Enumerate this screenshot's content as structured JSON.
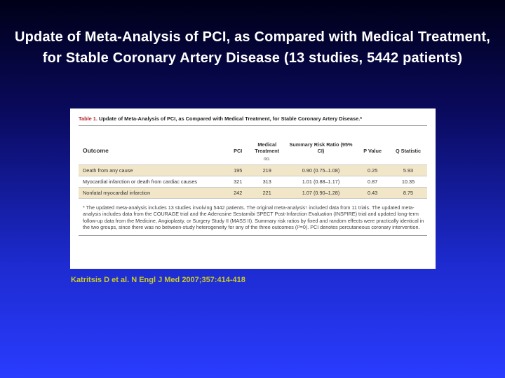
{
  "slide": {
    "title": "Update of Meta-Analysis of PCI, as Compared with Medical Treatment, for Stable Coronary Artery Disease (13 studies, 5442 patients)",
    "citation": "Katritsis D et al. N Engl J Med 2007;357:414-418"
  },
  "table": {
    "label": "Table 1.",
    "caption": "Update of Meta-Analysis of PCI, as Compared with Medical Treatment, for Stable Coronary Artery Disease.*",
    "headers": {
      "outcome": "Outcome",
      "pci": "PCI",
      "medical": "Medical Treatment",
      "ratio": "Summary Risk Ratio (95% CI)",
      "pvalue": "P Value",
      "qstat": "Q Statistic"
    },
    "unit": "no.",
    "rows": [
      {
        "outcome": "Death from any cause",
        "pci": "195",
        "medical": "219",
        "ratio": "0.90 (0.75–1.08)",
        "pvalue": "0.25",
        "qstat": "5.93"
      },
      {
        "outcome": "Myocardial infarction or death from cardiac causes",
        "pci": "321",
        "medical": "313",
        "ratio": "1.01 (0.88–1.17)",
        "pvalue": "0.87",
        "qstat": "10.35"
      },
      {
        "outcome": "Nonfatal myocardial infarction",
        "pci": "242",
        "medical": "221",
        "ratio": "1.07 (0.90–1.28)",
        "pvalue": "0.43",
        "qstat": "8.75"
      }
    ],
    "footnote": "* The updated meta-analysis includes 13 studies involving 5442 patients. The original meta-analysis⁵ included data from 11 trials. The updated meta-analysis includes data from the COURAGE trial and the Adenosine Sestamibi SPECT Post-Infarction Evaluation (INSPIRE) trial and updated long-term follow-up data from the Medicine, Angioplasty, or Surgery Study II (MASS II). Summary risk ratios by fixed and random effects were practically identical in the two groups, since there was no between-study heterogeneity for any of the three outcomes (I²=0). PCI denotes percutaneous coronary intervention."
  }
}
